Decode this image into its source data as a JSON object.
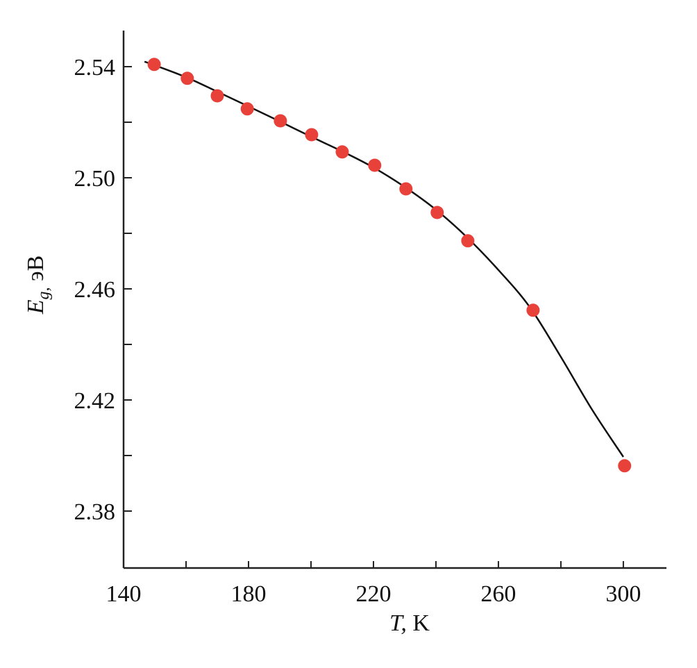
{
  "chart_data": {
    "type": "scatter",
    "xlabel_symbol": "T,",
    "xlabel_unit": "K",
    "ylabel_symbol": "E",
    "ylabel_subscript": "g,",
    "ylabel_unit": "эВ",
    "points": {
      "color": "#e8413a",
      "x": [
        149.8,
        160.4,
        170,
        179.6,
        190.2,
        200.2,
        210,
        220.4,
        230.4,
        240.4,
        250.2,
        271.1,
        300.4
      ],
      "values": [
        2.5408,
        2.5358,
        2.5295,
        2.5248,
        2.5205,
        2.5155,
        2.5093,
        2.5045,
        2.496,
        2.4875,
        2.4773,
        2.4523,
        2.3963
      ]
    },
    "curve": {
      "color": "#111111",
      "x": [
        146.7,
        150,
        160,
        170,
        180,
        190,
        200,
        210,
        220,
        230,
        240,
        250,
        260,
        270,
        280,
        290,
        300
      ],
      "values": [
        2.5418,
        2.5405,
        2.5362,
        2.531,
        2.5257,
        2.5203,
        2.5148,
        2.5095,
        2.5037,
        2.4967,
        2.4885,
        2.4785,
        2.4668,
        2.4535,
        2.4355,
        2.4165,
        2.3995
      ]
    },
    "xlim": [
      140,
      313.8
    ],
    "xticks": [
      140,
      180,
      220,
      260,
      300
    ],
    "xminor_ticks": [
      160,
      200,
      240,
      280
    ],
    "ylim": [
      2.3595,
      2.553
    ],
    "yticks": [
      2.38,
      2.42,
      2.46,
      {
        "value": 2.5,
        "label": "2.50"
      },
      2.54
    ],
    "yminor_ticks": [
      2.4,
      2.44,
      2.48,
      2.52
    ]
  }
}
